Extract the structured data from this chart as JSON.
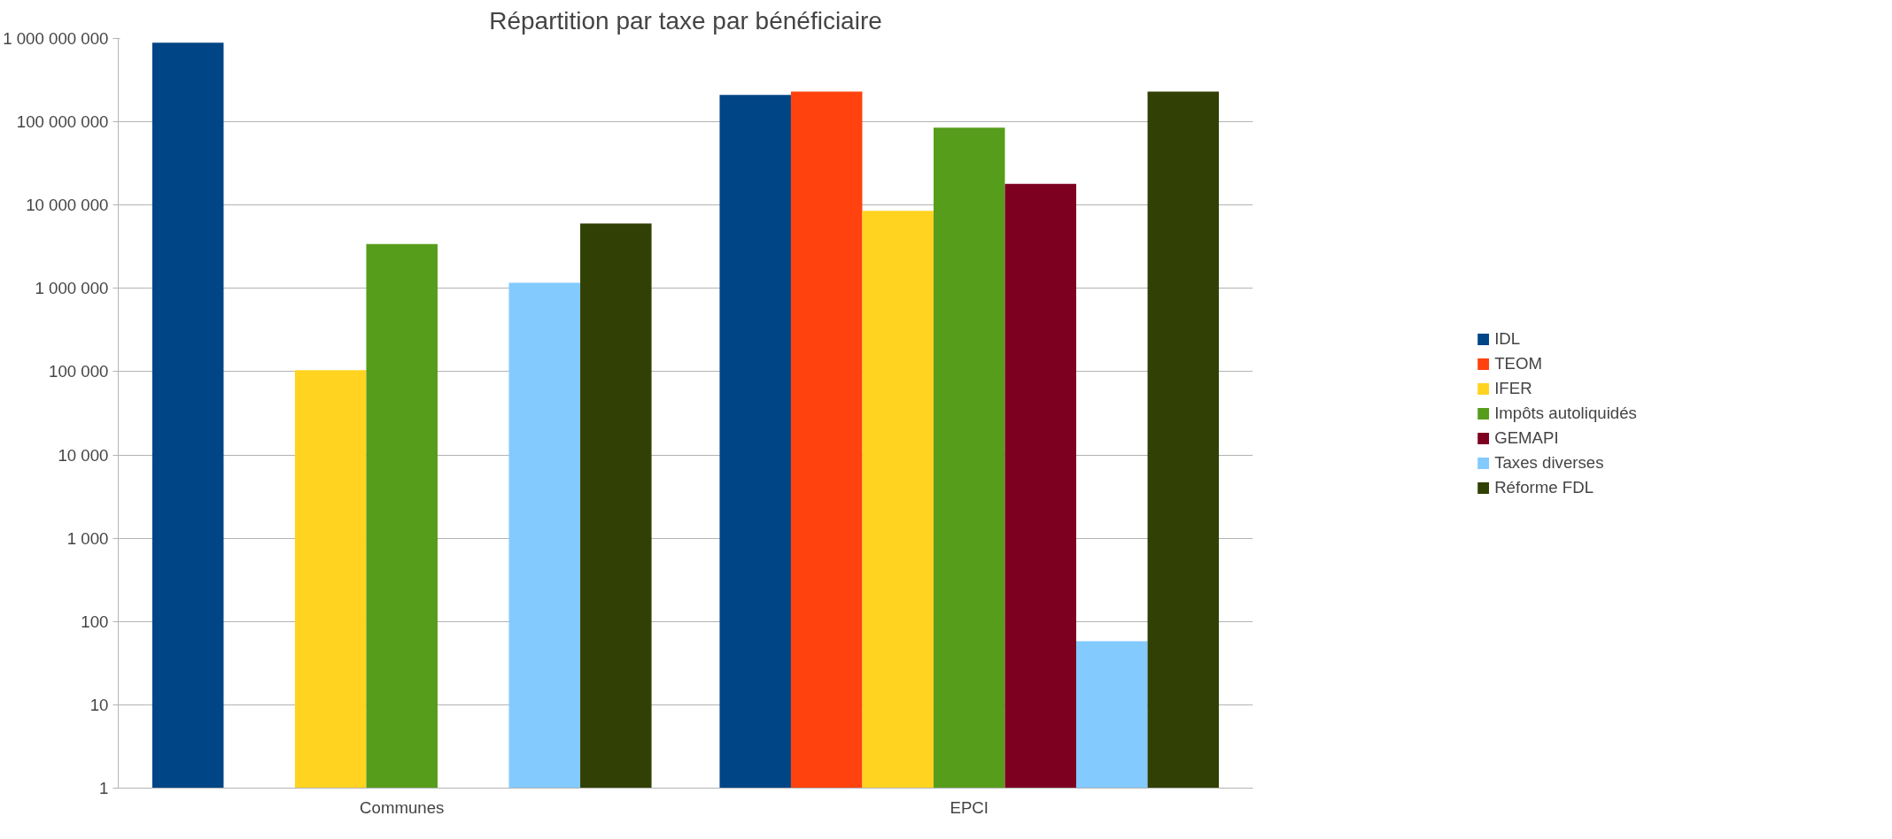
{
  "chart_data": {
    "type": "bar",
    "title": "Répartition par taxe par bénéficiaire",
    "categories": [
      "Communes",
      "EPCI"
    ],
    "log": true,
    "grid": "y",
    "legend": "right",
    "ylim": [
      1,
      1000000000
    ],
    "yticks": [
      1,
      10,
      100,
      {
        "value": 1000,
        "label": "1 000"
      },
      {
        "value": 10000,
        "label": "10 000"
      },
      {
        "value": 100000,
        "label": "100 000"
      },
      {
        "value": 1000000,
        "label": "1 000 000"
      },
      {
        "value": 10000000,
        "label": "10 000 000"
      },
      {
        "value": 100000000,
        "label": "100 000 000"
      },
      {
        "value": 1000000000,
        "label": "1 000 000 000"
      }
    ],
    "series": [
      {
        "name": "IDL",
        "color": "#004586",
        "values": [
          890000000,
          210000000
        ]
      },
      {
        "name": "TEOM",
        "color": "#ff420e",
        "values": [
          null,
          230000000
        ]
      },
      {
        "name": "IFER",
        "color": "#ffd320",
        "values": [
          104000,
          8500000
        ]
      },
      {
        "name": "Impôts autoliquidés",
        "color": "#579d1c",
        "values": [
          3400000,
          85000000
        ]
      },
      {
        "name": "GEMAPI",
        "color": "#7e0021",
        "values": [
          null,
          18000000
        ]
      },
      {
        "name": "Taxes diverses",
        "color": "#83caff",
        "values": [
          1170000,
          58
        ]
      },
      {
        "name": "Réforme FDL",
        "color": "#314004",
        "values": [
          6000000,
          230000000
        ]
      }
    ]
  }
}
